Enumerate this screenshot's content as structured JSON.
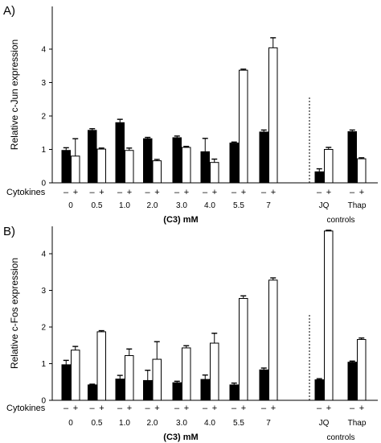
{
  "colors": {
    "cytokines_minus": "#000000",
    "cytokines_plus": "#ffffff",
    "outline": "#000000",
    "background": "#ffffff"
  },
  "row_labels": {
    "cytokines": "Cytokines",
    "minus": "–",
    "plus": "+"
  },
  "chart_data": [
    {
      "type": "bar",
      "panel": "A)",
      "ylabel": "Relative c-Jun expression",
      "ylim": [
        0,
        4.5
      ],
      "yticks": [
        0,
        1,
        2,
        3,
        4
      ],
      "xlabel": "(C3) mM",
      "group_label": "controls",
      "categories": [
        "0",
        "0.5",
        "1.0",
        "2.0",
        "3.0",
        "4.0",
        "5.5",
        "7",
        "JQ",
        "Thap"
      ],
      "series": [
        {
          "cytokines": "–",
          "values": [
            0.97,
            1.57,
            1.8,
            1.32,
            1.35,
            0.93,
            1.19,
            1.52,
            0.33,
            1.53
          ],
          "errors": [
            0.08,
            0.05,
            0.1,
            0.04,
            0.05,
            0.4,
            0.03,
            0.06,
            0.09,
            0.05
          ]
        },
        {
          "cytokines": "+",
          "values": [
            0.8,
            1.01,
            0.97,
            0.66,
            1.06,
            0.61,
            3.37,
            4.04,
            1.0,
            0.72
          ],
          "errors": [
            0.52,
            0.03,
            0.07,
            0.04,
            0.03,
            0.1,
            0.03,
            0.3,
            0.06,
            0.03
          ]
        }
      ],
      "grid": false,
      "legend": "none"
    },
    {
      "type": "bar",
      "panel": "B)",
      "ylabel": "Relative c-Fos expression",
      "ylim": [
        0,
        4.8
      ],
      "yticks": [
        0,
        1,
        2,
        3,
        4
      ],
      "xlabel": "(C3) mM",
      "group_label": "controls",
      "categories": [
        "0",
        "0.5",
        "1.0",
        "2.0",
        "3.0",
        "4.0",
        "5.5",
        "7",
        "JQ",
        "Thap"
      ],
      "series": [
        {
          "cytokines": "–",
          "values": [
            0.97,
            0.42,
            0.58,
            0.54,
            0.48,
            0.57,
            0.42,
            0.83,
            0.56,
            1.04
          ],
          "errors": [
            0.12,
            0.02,
            0.1,
            0.28,
            0.04,
            0.12,
            0.05,
            0.05,
            0.03,
            0.03
          ]
        },
        {
          "cytokines": "+",
          "values": [
            1.37,
            1.87,
            1.22,
            1.12,
            1.43,
            1.56,
            2.78,
            3.28,
            4.62,
            1.66
          ],
          "errors": [
            0.1,
            0.03,
            0.18,
            0.48,
            0.06,
            0.27,
            0.07,
            0.06,
            0.02,
            0.04
          ]
        }
      ],
      "grid": false,
      "legend": "none"
    }
  ]
}
